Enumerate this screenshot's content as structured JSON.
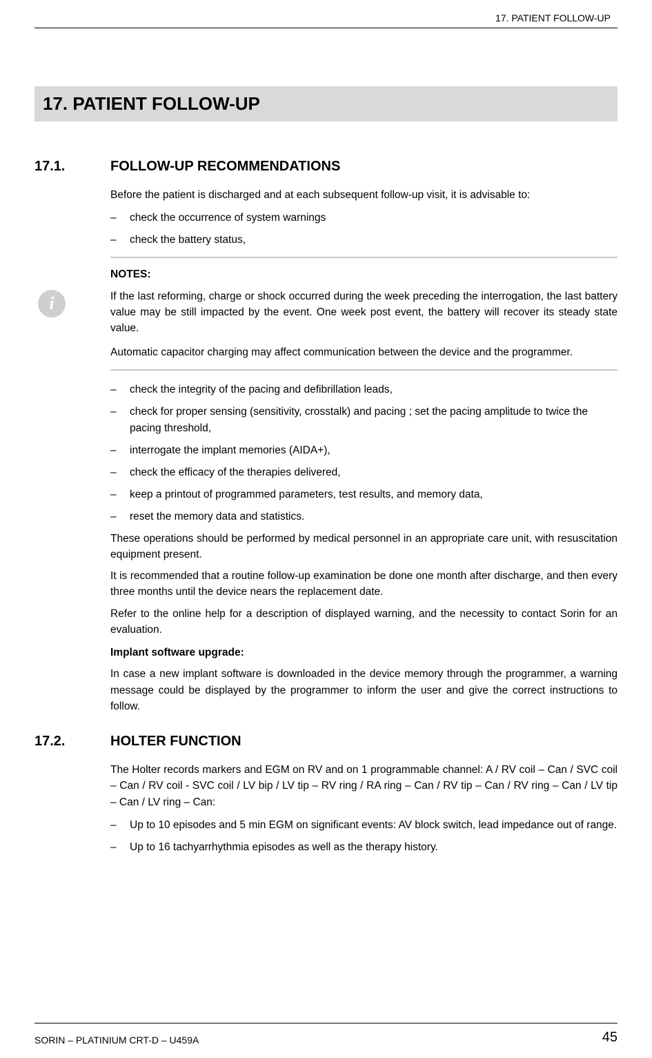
{
  "header": {
    "running_head": "17.  PATIENT FOLLOW-UP"
  },
  "chapter": {
    "number": "17.",
    "title": "PATIENT FOLLOW-UP"
  },
  "section1": {
    "number": "17.1.",
    "title": "FOLLOW-UP RECOMMENDATIONS",
    "intro": "Before the patient is discharged and at each subsequent follow-up visit, it is advisable to:",
    "bullets_pre": [
      "check the occurrence of system warnings",
      "check the battery status,"
    ],
    "notes_label": "NOTES:",
    "notes_p1": "If the last reforming, charge or shock occurred during the week preceding the interrogation, the last battery value may be still impacted by the event. One week post event, the battery will recover its steady state value.",
    "notes_p2": "Automatic capacitor charging may affect communication between the device and the programmer.",
    "bullets_post": [
      "check the integrity of the pacing and defibrillation leads,",
      "check for proper sensing (sensitivity, crosstalk) and pacing ; set the pacing amplitude to twice the pacing threshold,",
      "interrogate the implant memories (AIDA+),",
      "check the efficacy of the therapies delivered,",
      "keep a printout of programmed parameters, test results, and memory data,",
      "reset the memory data and statistics."
    ],
    "para1": "These operations should be performed by medical personnel in an appropriate care unit, with resuscitation equipment present.",
    "para2": "It is recommended that a routine follow-up examination be done one month after discharge, and then every three months until the device nears the replacement date.",
    "para3": "Refer to the online help for a description of displayed warning, and the necessity to contact Sorin for an evaluation.",
    "subheading": "Implant software upgrade:",
    "para4": "In case a new implant software is downloaded in the device memory through the programmer, a warning message could be displayed by the programmer to inform the user and give the correct instructions to follow."
  },
  "section2": {
    "number": "17.2.",
    "title": "HOLTER FUNCTION",
    "intro": "The Holter records markers and EGM on RV and on 1 programmable channel: A / RV coil – Can / SVC coil – Can / RV coil - SVC coil / LV bip / LV tip – RV ring / RA ring – Can / RV tip – Can / RV ring – Can / LV tip – Can / LV ring – Can:",
    "bullets": [
      "Up to 10 episodes and 5 min EGM on significant events: AV block switch, lead impedance out of range.",
      "Up to 16 tachyarrhythmia episodes as well as the therapy history."
    ]
  },
  "footer": {
    "left": "SORIN – PLATINIUM CRT-D – U459A",
    "page_number": "45"
  },
  "icon": {
    "glyph": "i"
  }
}
